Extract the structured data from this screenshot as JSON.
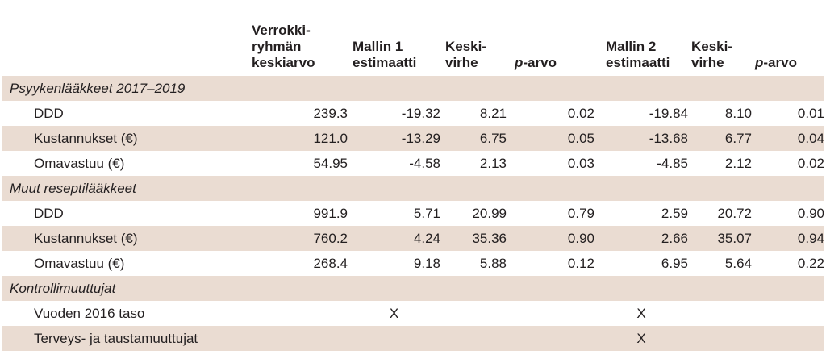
{
  "headers": {
    "group_mean": [
      "Verrokki-",
      "ryhmän",
      "keskiarvo"
    ],
    "m1_est": [
      "Mallin 1",
      "estimaatti"
    ],
    "m1_se": [
      "Keski-",
      "virhe"
    ],
    "p_italic": "p",
    "p_rest": "-arvo",
    "m2_est": [
      "Mallin 2",
      "estimaatti"
    ],
    "m2_se": [
      "Keski-",
      "virhe"
    ]
  },
  "sections": [
    {
      "title": "Psyykenlääkkeet 2017–2019",
      "rows": [
        {
          "label": "DDD",
          "mean": "239.3",
          "m1": "-19.32",
          "se1": "8.21",
          "p1": "0.02",
          "m2": "-19.84",
          "se2": "8.10",
          "p2": "0.01"
        },
        {
          "label": "Kustannukset (€)",
          "mean": "121.0",
          "m1": "-13.29",
          "se1": "6.75",
          "p1": "0.05",
          "m2": "-13.68",
          "se2": "6.77",
          "p2": "0.04"
        },
        {
          "label": "Omavastuu (€)",
          "mean": "54.95",
          "m1": "-4.58",
          "se1": "2.13",
          "p1": "0.03",
          "m2": "-4.85",
          "se2": "2.12",
          "p2": "0.02"
        }
      ]
    },
    {
      "title": "Muut reseptilääkkeet",
      "rows": [
        {
          "label": "DDD",
          "mean": "991.9",
          "m1": "5.71",
          "se1": "20.99",
          "p1": "0.79",
          "m2": "2.59",
          "se2": "20.72",
          "p2": "0.90"
        },
        {
          "label": "Kustannukset (€)",
          "mean": "760.2",
          "m1": "4.24",
          "se1": "35.36",
          "p1": "0.90",
          "m2": "2.66",
          "se2": "35.07",
          "p2": "0.94"
        },
        {
          "label": "Omavastuu (€)",
          "mean": "268.4",
          "m1": "9.18",
          "se1": "5.88",
          "p1": "0.12",
          "m2": "6.95",
          "se2": "5.64",
          "p2": "0.22"
        }
      ]
    },
    {
      "title": "Kontrollimuuttujat",
      "rows": [
        {
          "label": "Vuoden 2016 taso",
          "m1_mark": "X",
          "m2_mark": "X"
        },
        {
          "label": "Terveys- ja taustamuuttujat",
          "m1_mark": "",
          "m2_mark": "X"
        }
      ]
    }
  ]
}
